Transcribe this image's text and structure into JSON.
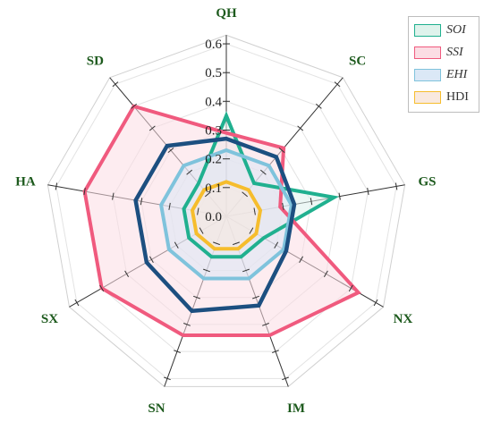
{
  "chart_data": {
    "type": "radar",
    "categories": [
      "QH",
      "SC",
      "GS",
      "NX",
      "IM",
      "SN",
      "SX",
      "HA",
      "SD"
    ],
    "rlim": [
      0,
      0.6
    ],
    "ticks": [
      "0.0",
      "0.1",
      "0.2",
      "0.3",
      "0.4",
      "0.5",
      "0.6"
    ],
    "series": [
      {
        "name": "SOI",
        "italic": true,
        "color": "#20b08f",
        "fill": "#dff3ec",
        "values": [
          0.35,
          0.15,
          0.38,
          0.15,
          0.15,
          0.15,
          0.15,
          0.15,
          0.15
        ]
      },
      {
        "name": "SSI",
        "italic": true,
        "color": "#f05a7e",
        "fill": "#fbdde4",
        "values": [
          0.29,
          0.31,
          0.19,
          0.53,
          0.44,
          0.44,
          0.5,
          0.5,
          0.5
        ]
      },
      {
        "name": "EHI",
        "italic": true,
        "color": "#7fc3dc",
        "fill": "#dbe8f6",
        "values": [
          0.23,
          0.23,
          0.23,
          0.23,
          0.23,
          0.23,
          0.23,
          0.23,
          0.23
        ]
      },
      {
        "name": "HDI",
        "italic": false,
        "color": "#f6bd2d",
        "fill": "#f9e9df",
        "values": [
          0.12,
          0.12,
          0.12,
          0.12,
          0.12,
          0.12,
          0.12,
          0.12,
          0.12
        ]
      },
      {
        "name": "",
        "color": "#1c4f80",
        "values": [
          0.27,
          0.27,
          0.24,
          0.24,
          0.33,
          0.35,
          0.32,
          0.32,
          0.32
        ]
      }
    ],
    "grid": true,
    "legend_position": "top-right"
  }
}
